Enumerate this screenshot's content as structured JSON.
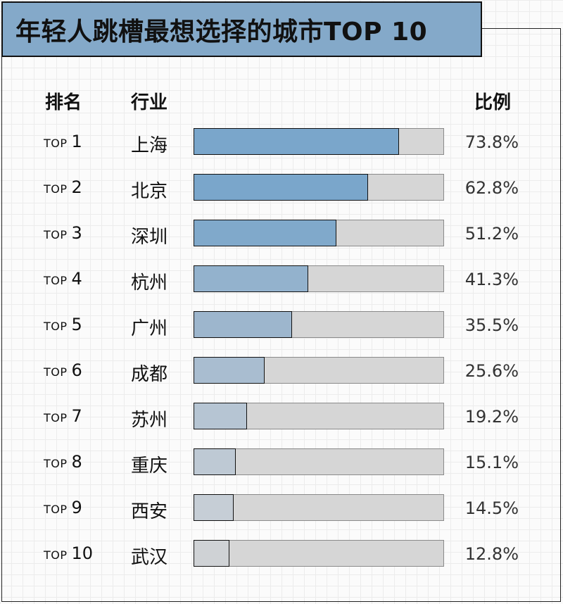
{
  "title": "年轻人跳槽最想选择的城市TOP 10",
  "headers": {
    "rank": "排名",
    "industry": "行业",
    "ratio": "比例"
  },
  "colors": {
    "title_bg": "#84a9c9",
    "track": "#d6d6d6",
    "fills": [
      "#7aa6cb",
      "#7aa6cb",
      "#80a9cb",
      "#93b2cd",
      "#9db6cd",
      "#a9bdd0",
      "#b6c5d3",
      "#bec9d4",
      "#c6ced6",
      "#cfd2d5"
    ]
  },
  "chart_data": {
    "type": "bar",
    "orientation": "horizontal",
    "ranks": [
      "TOP 1",
      "TOP 2",
      "TOP 3",
      "TOP 4",
      "TOP 5",
      "TOP 6",
      "TOP 7",
      "TOP 8",
      "TOP 9",
      "TOP 10"
    ],
    "categories": [
      "上海",
      "北京",
      "深圳",
      "杭州",
      "广州",
      "成都",
      "苏州",
      "重庆",
      "西安",
      "武汉"
    ],
    "values": [
      73.8,
      62.8,
      51.2,
      41.3,
      35.5,
      25.6,
      19.2,
      15.1,
      14.5,
      12.8
    ],
    "value_labels": [
      "73.8%",
      "62.8%",
      "51.2%",
      "41.3%",
      "35.5%",
      "25.6%",
      "19.2%",
      "15.1%",
      "14.5%",
      "12.8%"
    ],
    "xlim": [
      0,
      90
    ],
    "unit": "%"
  }
}
